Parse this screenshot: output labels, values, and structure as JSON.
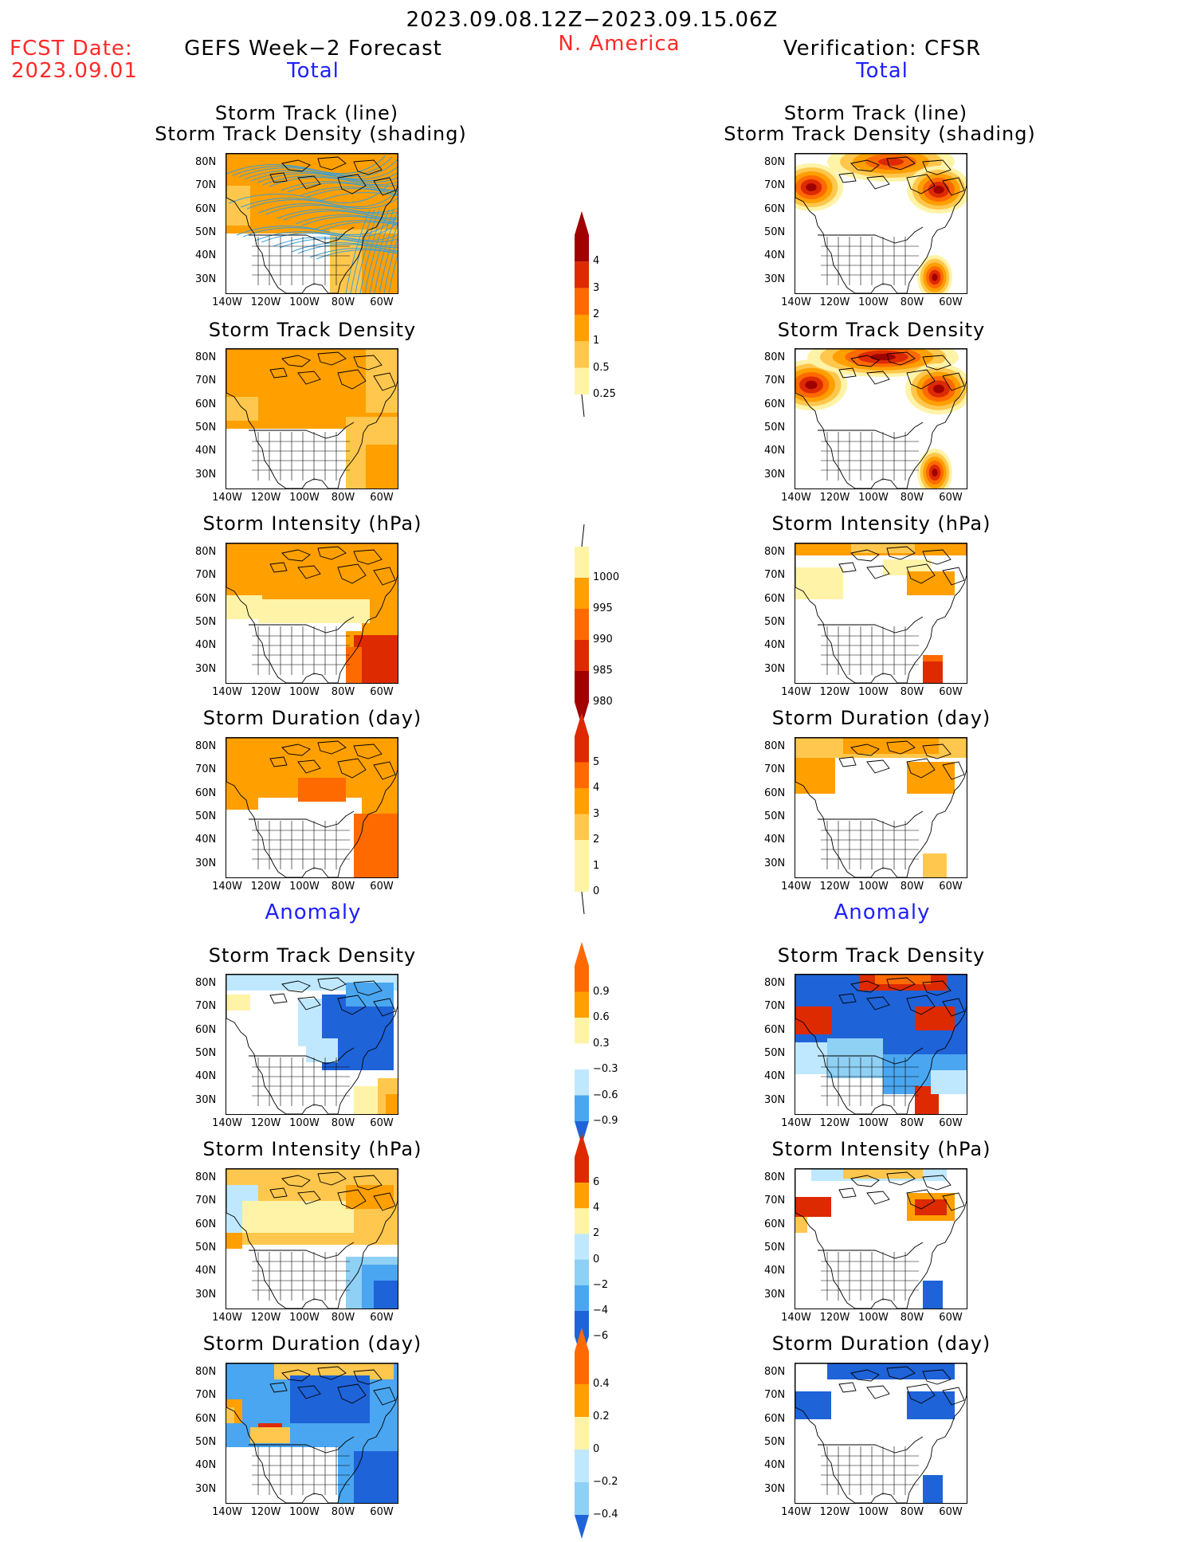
{
  "header": {
    "date_range": "2023.09.08.12Z−2023.09.15.06Z",
    "fcst_label": "FCST Date:",
    "fcst_date": "2023.09.01",
    "left_title": "GEFS Week−2 Forecast",
    "region": "N. America",
    "right_title": "Verification: CFSR",
    "total_left": "Total",
    "total_right": "Total",
    "anomaly_left": "Anomaly",
    "anomaly_right": "Anomaly"
  },
  "panels": [
    {
      "title1": "Storm Track (line)",
      "title2": "Storm Track Density (shading)"
    },
    {
      "title1": "Storm Track Density",
      "title2": ""
    },
    {
      "title1": "Storm Intensity (hPa)",
      "title2": ""
    },
    {
      "title1": "Storm Duration (day)",
      "title2": ""
    },
    {
      "title1": "Storm Track Density",
      "title2": ""
    },
    {
      "title1": "Storm Intensity (hPa)",
      "title2": ""
    },
    {
      "title1": "Storm Duration (day)",
      "title2": ""
    }
  ],
  "axes": {
    "lat_labels": [
      "80N",
      "70N",
      "60N",
      "50N",
      "40N",
      "30N"
    ],
    "lon_labels": [
      "140W",
      "120W",
      "100W",
      "80W",
      "60W"
    ]
  },
  "colorbars": {
    "density_total": [
      "4",
      "3",
      "2",
      "1",
      "0.5",
      "0.25"
    ],
    "intensity_total": [
      "1000",
      "995",
      "990",
      "985",
      "980"
    ],
    "duration_total": [
      "5",
      "4",
      "3",
      "2",
      "1",
      "0"
    ],
    "density_anom": [
      "0.9",
      "0.6",
      "0.3",
      "−0.3",
      "−0.6",
      "−0.9"
    ],
    "intensity_anom": [
      "6",
      "4",
      "2",
      "0",
      "−2",
      "−4",
      "−6"
    ],
    "duration_anom": [
      "0.4",
      "0.2",
      "0",
      "−0.2",
      "−0.4"
    ]
  },
  "colors": {
    "dark_red": "#a00000",
    "red": "#dd2a00",
    "orange_red": "#ff6a00",
    "orange": "#ff9f00",
    "light_orange": "#ffc74d",
    "pale_yellow": "#fff3a8",
    "pale_blue": "#bfe8ff",
    "light_blue": "#8fd0f5",
    "mid_blue": "#4aa6f0",
    "blue": "#1e63d8",
    "track_line": "#3a9fd6"
  }
}
